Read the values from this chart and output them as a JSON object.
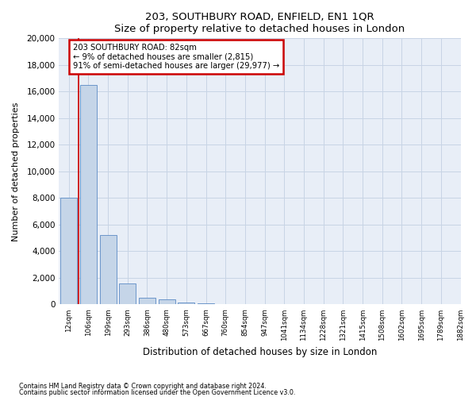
{
  "title": "203, SOUTHBURY ROAD, ENFIELD, EN1 1QR",
  "subtitle": "Size of property relative to detached houses in London",
  "xlabel": "Distribution of detached houses by size in London",
  "ylabel": "Number of detached properties",
  "annotation_title": "203 SOUTHBURY ROAD: 82sqm",
  "annotation_line1": "← 9% of detached houses are smaller (2,815)",
  "annotation_line2": "91% of semi-detached houses are larger (29,977) →",
  "footer1": "Contains HM Land Registry data © Crown copyright and database right 2024.",
  "footer2": "Contains public sector information licensed under the Open Government Licence v3.0.",
  "property_sqm": 82,
  "bar_color": "#c5d5e8",
  "bar_edge_color": "#5b8ac5",
  "grid_color": "#c8d4e5",
  "bg_color": "#e8eef7",
  "annotation_box_color": "#cc0000",
  "vline_color": "#cc0000",
  "ylim": [
    0,
    20000
  ],
  "yticks": [
    0,
    2000,
    4000,
    6000,
    8000,
    10000,
    12000,
    14000,
    16000,
    18000,
    20000
  ],
  "bin_labels": [
    "12sqm",
    "106sqm",
    "199sqm",
    "293sqm",
    "386sqm",
    "480sqm",
    "573sqm",
    "667sqm",
    "760sqm",
    "854sqm",
    "947sqm",
    "1041sqm",
    "1134sqm",
    "1228sqm",
    "1321sqm",
    "1415sqm",
    "1508sqm",
    "1602sqm",
    "1695sqm",
    "1789sqm",
    "1882sqm"
  ],
  "bar_heights": [
    8000,
    16500,
    5200,
    1600,
    530,
    380,
    170,
    90,
    55,
    0,
    0,
    0,
    0,
    0,
    0,
    0,
    0,
    0,
    0,
    0
  ],
  "n_bars": 20,
  "vline_bar_index": 0
}
